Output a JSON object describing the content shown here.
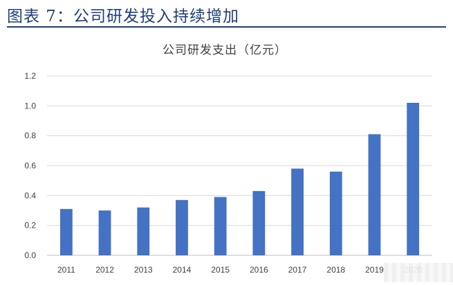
{
  "caption": "图表 7：公司研发投入持续增加",
  "chart_data": {
    "type": "bar",
    "title": "公司研发支出（亿元）",
    "categories": [
      "2011",
      "2012",
      "2013",
      "2014",
      "2015",
      "2016",
      "2017",
      "2018",
      "2019",
      "2020"
    ],
    "values": [
      0.31,
      0.3,
      0.32,
      0.37,
      0.39,
      0.43,
      0.58,
      0.56,
      0.81,
      1.02
    ],
    "ylim": [
      0,
      1.2
    ],
    "yticks": [
      "0.0",
      "0.2",
      "0.4",
      "0.6",
      "0.8",
      "1.0",
      "1.2"
    ],
    "grid": true,
    "bar_color": "#4472C4"
  }
}
